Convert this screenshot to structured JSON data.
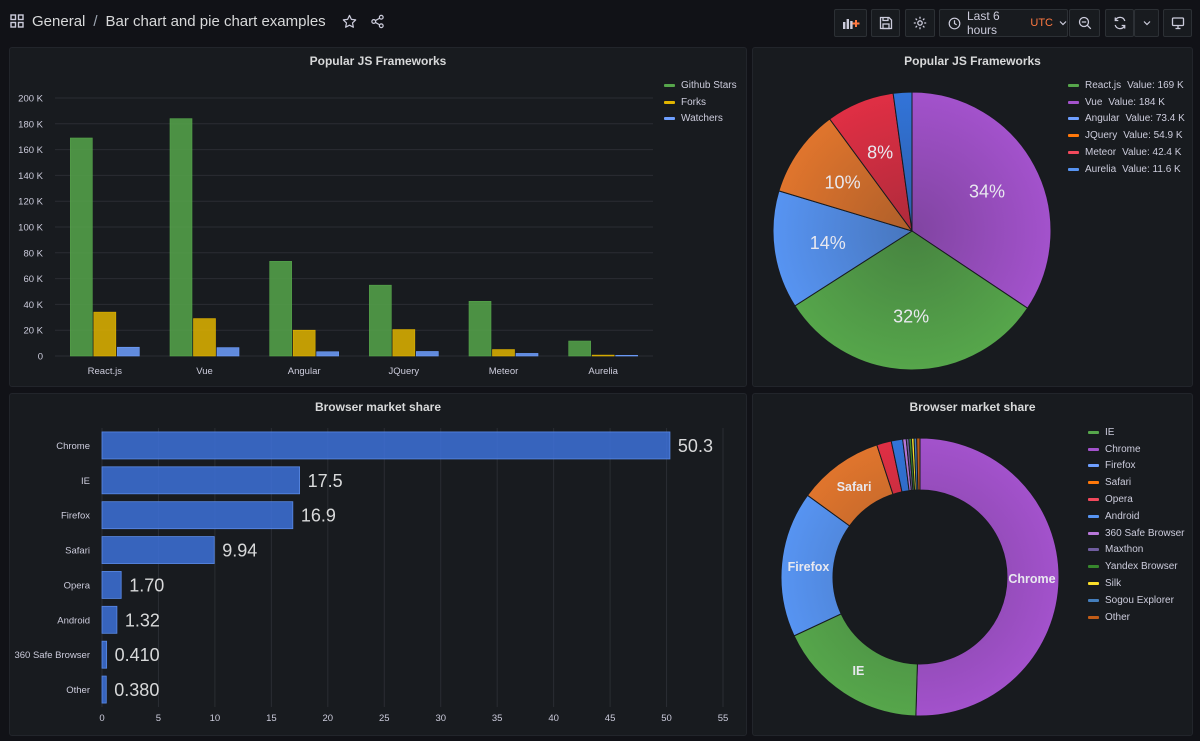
{
  "header": {
    "folder": "General",
    "separator": "/",
    "dashboard_title": "Bar chart and pie chart examples",
    "time_range": "Last 6 hours",
    "timezone": "UTC"
  },
  "icons": {
    "apps": "apps-grid-icon",
    "star": "star-icon",
    "share": "share-icon",
    "add_panel": "add-panel-icon",
    "save": "save-icon",
    "settings": "gear-icon",
    "clock": "clock-icon",
    "zoom_out": "zoom-out-icon",
    "refresh": "refresh-icon",
    "monitor": "tv-mode-icon"
  },
  "colors": {
    "green": "#56a64b",
    "yellow": "#e0b400",
    "blue": "#6e9fff",
    "purple": "#a352cc",
    "orange": "#ff780a",
    "red": "#f2495c",
    "bar_blue": "#3d71d9",
    "background": "#111217",
    "panel": "#181b1f"
  },
  "panels": {
    "frameworks_bar": {
      "title": "Popular JS Frameworks",
      "legend": [
        "Github Stars",
        "Forks",
        "Watchers"
      ],
      "chart_data": {
        "type": "bar",
        "categories": [
          "React.js",
          "Vue",
          "Angular",
          "JQuery",
          "Meteor",
          "Aurelia"
        ],
        "series": [
          {
            "name": "Github Stars",
            "color": "#56a64b",
            "values": [
              169000,
              184000,
              73400,
              54900,
              42400,
              11600
            ]
          },
          {
            "name": "Forks",
            "color": "#e0b400",
            "values": [
              34000,
              29000,
              20000,
              20500,
              5000,
              700
            ]
          },
          {
            "name": "Watchers",
            "color": "#6e9fff",
            "values": [
              6800,
              6500,
              3300,
              3500,
              2000,
              500
            ]
          }
        ],
        "yticks": [
          "0",
          "20 K",
          "40 K",
          "60 K",
          "80 K",
          "100 K",
          "120 K",
          "140 K",
          "160 K",
          "180 K",
          "200 K"
        ],
        "ylim": [
          0,
          200000
        ],
        "legend_position": "top-right",
        "grid": true
      }
    },
    "frameworks_pie": {
      "title": "Popular JS Frameworks",
      "legend": [
        {
          "name": "React.js",
          "value": "Value: 169 K",
          "color": "#56a64b"
        },
        {
          "name": "Vue",
          "value": "Value: 184 K",
          "color": "#a352cc"
        },
        {
          "name": "Angular",
          "value": "Value: 73.4 K",
          "color": "#6e9fff"
        },
        {
          "name": "JQuery",
          "value": "Value: 54.9 K",
          "color": "#ff780a"
        },
        {
          "name": "Meteor",
          "value": "Value: 42.4 K",
          "color": "#f2495c"
        },
        {
          "name": "Aurelia",
          "value": "Value: 11.6 K",
          "color": "#5794f2"
        }
      ],
      "chart_data": {
        "type": "pie",
        "slices": [
          {
            "name": "Vue",
            "value": 184000,
            "label": "34%",
            "color": "#a352cc"
          },
          {
            "name": "React.js",
            "value": 169000,
            "label": "32%",
            "color": "#56a64b"
          },
          {
            "name": "Angular",
            "value": 73400,
            "label": "14%",
            "color": "#5794f2"
          },
          {
            "name": "JQuery",
            "value": 54900,
            "label": "10%",
            "color": "#e0752d"
          },
          {
            "name": "Meteor",
            "value": 42400,
            "label": "8%",
            "color": "#e02f44"
          },
          {
            "name": "Aurelia",
            "value": 11600,
            "label": "",
            "color": "#3274d9"
          }
        ],
        "legend_position": "right"
      }
    },
    "browser_bar": {
      "title": "Browser market share",
      "chart_data": {
        "type": "bar",
        "orientation": "horizontal",
        "categories": [
          "Chrome",
          "IE",
          "Firefox",
          "Safari",
          "Opera",
          "Android",
          "360 Safe Browser",
          "Other"
        ],
        "values": [
          50.3,
          17.5,
          16.9,
          9.94,
          1.7,
          1.32,
          0.41,
          0.38
        ],
        "value_labels": [
          "50.3",
          "17.5",
          "16.9",
          "9.94",
          "1.70",
          "1.32",
          "0.410",
          "0.380"
        ],
        "xticks": [
          "0",
          "5",
          "10",
          "15",
          "20",
          "25",
          "30",
          "35",
          "40",
          "45",
          "50",
          "55"
        ],
        "xlim": [
          0,
          55
        ],
        "grid": true
      }
    },
    "browser_donut": {
      "title": "Browser market share",
      "legend": [
        {
          "name": "IE",
          "color": "#56a64b"
        },
        {
          "name": "Chrome",
          "color": "#a352cc"
        },
        {
          "name": "Firefox",
          "color": "#6e9fff"
        },
        {
          "name": "Safari",
          "color": "#ff780a"
        },
        {
          "name": "Opera",
          "color": "#f2495c"
        },
        {
          "name": "Android",
          "color": "#5794f2"
        },
        {
          "name": "360 Safe Browser",
          "color": "#b877d9"
        },
        {
          "name": "Maxthon",
          "color": "#705da0"
        },
        {
          "name": "Yandex Browser",
          "color": "#37872d"
        },
        {
          "name": "Silk",
          "color": "#fade2a"
        },
        {
          "name": "Sogou Explorer",
          "color": "#447ebc"
        },
        {
          "name": "Other",
          "color": "#c15c17"
        }
      ],
      "chart_data": {
        "type": "pie",
        "donut": true,
        "slices": [
          {
            "name": "Chrome",
            "value": 50.3,
            "label": "Chrome",
            "color": "#a352cc"
          },
          {
            "name": "IE",
            "value": 17.5,
            "label": "IE",
            "color": "#56a64b"
          },
          {
            "name": "Firefox",
            "value": 16.9,
            "label": "Firefox",
            "color": "#5794f2"
          },
          {
            "name": "Safari",
            "value": 9.94,
            "label": "Safari",
            "color": "#e0752d"
          },
          {
            "name": "Opera",
            "value": 1.7,
            "label": "",
            "color": "#e02f44"
          },
          {
            "name": "Android",
            "value": 1.32,
            "label": "",
            "color": "#3274d9"
          },
          {
            "name": "360 Safe Browser",
            "value": 0.41,
            "label": "",
            "color": "#b877d9"
          },
          {
            "name": "Maxthon",
            "value": 0.3,
            "label": "",
            "color": "#705da0"
          },
          {
            "name": "Yandex Browser",
            "value": 0.3,
            "label": "",
            "color": "#37872d"
          },
          {
            "name": "Silk",
            "value": 0.3,
            "label": "",
            "color": "#fade2a"
          },
          {
            "name": "Sogou Explorer",
            "value": 0.3,
            "label": "",
            "color": "#447ebc"
          },
          {
            "name": "Other",
            "value": 0.38,
            "label": "",
            "color": "#c15c17"
          }
        ],
        "legend_position": "right"
      }
    }
  }
}
